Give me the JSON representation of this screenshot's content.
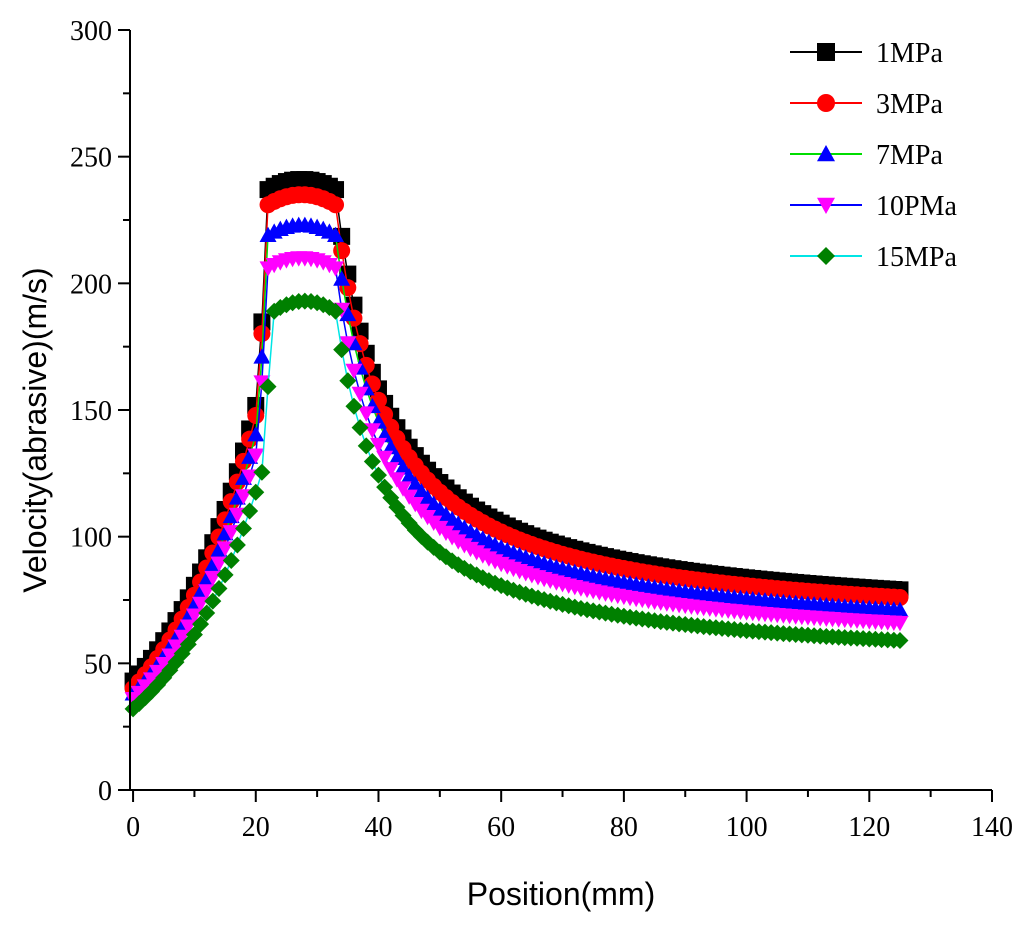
{
  "chart_data": {
    "type": "scatter",
    "title": "",
    "xlabel": "Position(mm)",
    "ylabel": "Velocity(abrasive)(m/s)",
    "xlim": [
      -0.5,
      140
    ],
    "ylim": [
      0,
      300
    ],
    "xticks": [
      0,
      20,
      40,
      60,
      80,
      100,
      120,
      140
    ],
    "yticks": [
      0,
      50,
      100,
      150,
      200,
      250,
      300
    ],
    "xtick_labels": [
      "0",
      "20",
      "40",
      "60",
      "80",
      "100",
      "120",
      "140"
    ],
    "ytick_labels": [
      "0",
      "50",
      "100",
      "150",
      "200",
      "250",
      "300"
    ],
    "grid": false,
    "legend_position": "top-right",
    "x_range": [
      0,
      125
    ],
    "point_step": 1.0,
    "series": [
      {
        "name": "1MPa",
        "marker": "square",
        "marker_color": "#000000",
        "line_color": "#000000",
        "start": 43,
        "jump_at": 20.5,
        "peak": 241,
        "plateau": [
          22,
          33
        ],
        "decay_start": 34,
        "end": 79
      },
      {
        "name": "3MPa",
        "marker": "circle",
        "marker_color": "#ff0000",
        "line_color": "#ff0000",
        "start": 40,
        "jump_at": 20.5,
        "peak": 235,
        "plateau": [
          22,
          33
        ],
        "decay_start": 34,
        "end": 76
      },
      {
        "name": "7MPa",
        "marker": "triangle-up",
        "marker_color": "#0000ff",
        "line_color": "#00dd00",
        "start": 38,
        "jump_at": 20.5,
        "peak": 223,
        "plateau": [
          22,
          33
        ],
        "decay_start": 34,
        "end": 71
      },
      {
        "name": "10PMa",
        "marker": "triangle-down",
        "marker_color": "#ff00ff",
        "line_color": "#0000ff",
        "start": 36,
        "jump_at": 20.5,
        "peak": 210,
        "plateau": [
          22,
          33
        ],
        "decay_start": 34,
        "end": 66
      },
      {
        "name": "15MPa",
        "marker": "diamond",
        "marker_color": "#008000",
        "line_color": "#00e5e5",
        "start": 32,
        "jump_at": 21.0,
        "peak": 193,
        "plateau": [
          23,
          33
        ],
        "decay_start": 34,
        "end": 59
      }
    ]
  }
}
